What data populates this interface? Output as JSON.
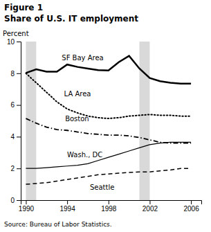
{
  "chart_data": {
    "type": "line",
    "title": "Figure 1",
    "subtitle": "Share of U.S. IT employment",
    "ylabel": "Percent",
    "source": "Source: Bureau of Labor Statistics.",
    "x": [
      1990,
      1991,
      1992,
      1993,
      1994,
      1995,
      1996,
      1997,
      1998,
      1999,
      2000,
      2001,
      2002,
      2003,
      2004,
      2005,
      2006
    ],
    "xlim": [
      1989.5,
      2007.0
    ],
    "xticks": [
      1990,
      1994,
      1998,
      2002,
      2006
    ],
    "ylim": [
      0,
      10
    ],
    "yticks": [
      0,
      2,
      4,
      6,
      8,
      10
    ],
    "grid": false,
    "shaded_regions": [
      [
        1990,
        1991
      ],
      [
        2001,
        2002
      ]
    ],
    "series": [
      {
        "name": "SF Bay Area",
        "color": "#000000",
        "line_style": "solid",
        "values": [
          8.02,
          8.25,
          8.1,
          8.1,
          8.55,
          8.4,
          8.3,
          8.2,
          8.18,
          8.7,
          9.1,
          8.3,
          7.7,
          7.5,
          7.4,
          7.35,
          7.35
        ]
      },
      {
        "name": "LA Area",
        "color": "#000000",
        "line_style": "dotted",
        "values": [
          8.0,
          7.4,
          6.8,
          6.2,
          5.75,
          5.5,
          5.3,
          5.2,
          5.15,
          5.2,
          5.3,
          5.35,
          5.4,
          5.35,
          5.35,
          5.3,
          5.3
        ]
      },
      {
        "name": "Boston",
        "color": "#000000",
        "line_style": "dashdot",
        "values": [
          5.15,
          4.85,
          4.6,
          4.45,
          4.4,
          4.3,
          4.2,
          4.15,
          4.1,
          4.1,
          4.05,
          3.95,
          3.8,
          3.65,
          3.6,
          3.6,
          3.6
        ]
      },
      {
        "name": "Wash., DC",
        "color": "#000000",
        "line_style": "solid",
        "values": [
          2.0,
          2.0,
          2.05,
          2.1,
          2.15,
          2.2,
          2.3,
          2.5,
          2.7,
          2.9,
          3.1,
          3.3,
          3.5,
          3.6,
          3.65,
          3.65,
          3.65
        ]
      },
      {
        "name": "Seattle",
        "color": "#000000",
        "line_style": "dashed",
        "values": [
          1.0,
          1.05,
          1.1,
          1.2,
          1.3,
          1.4,
          1.5,
          1.6,
          1.65,
          1.7,
          1.75,
          1.78,
          1.78,
          1.85,
          1.9,
          2.0,
          2.0
        ]
      }
    ]
  }
}
